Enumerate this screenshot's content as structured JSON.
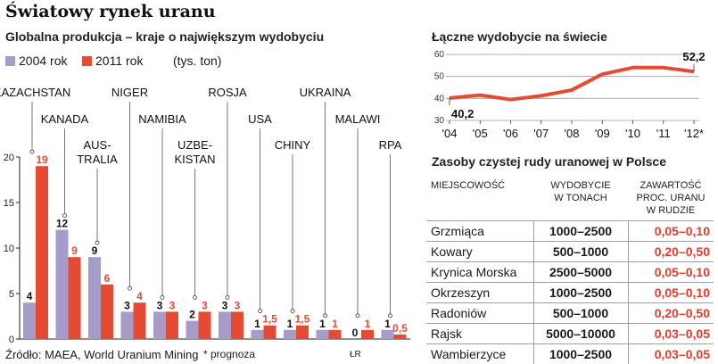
{
  "title": "Światowy rynek uranu",
  "subtitle": "Globalna produkcja – kraje o największym wydobyciu",
  "legend": {
    "series_2004": "2004 rok",
    "series_2011": "2011 rok",
    "unit": "(tys. ton)"
  },
  "source": "Źródło: MAEA, World Uranium Mining",
  "footnote": "* prognoza",
  "credit": "ŁR",
  "colors": {
    "series_2004": "#a79bc9",
    "series_2011": "#e54b32",
    "axis": "#222222"
  },
  "chart_data": [
    {
      "type": "bar",
      "title": "Globalna produkcja – kraje o największym wydobyciu",
      "categories": [
        "KAZACHSTAN",
        "KANADA",
        "AUS-\nTRALIA",
        "NIGER",
        "NAMIBIA",
        "UZBE-\nKISTAN",
        "ROSJA",
        "USA",
        "CHINY",
        "UKRAINA",
        "MALAWI",
        "RPA"
      ],
      "series": [
        {
          "name": "2004 rok",
          "values": [
            4,
            12,
            9,
            3,
            3,
            2,
            3,
            1,
            1,
            1,
            0,
            1
          ],
          "labels": [
            "4",
            "12",
            "9",
            "3",
            "3",
            "2",
            "3",
            "1",
            "1",
            "1",
            "0",
            "1"
          ]
        },
        {
          "name": "2011 rok",
          "values": [
            19,
            9,
            6,
            4,
            3,
            3,
            3,
            1.5,
            1.5,
            1,
            1,
            0.5
          ],
          "labels": [
            "19",
            "9",
            "6",
            "4",
            "3",
            "3",
            "3",
            "1,5",
            "1,5",
            "1",
            "1",
            "0,5"
          ]
        }
      ],
      "ylim": [
        0,
        20
      ],
      "yticks": [
        "0",
        "5",
        "10",
        "15",
        "20"
      ],
      "xlabel": "",
      "ylabel": "",
      "grid": false,
      "legend": "top-left"
    },
    {
      "type": "line",
      "title": "Łączne wydobycie na świecie",
      "x": [
        "'04",
        "'05",
        "'06",
        "'07",
        "'08",
        "'09",
        "'10",
        "'11",
        "'12*"
      ],
      "series": [
        {
          "name": "",
          "values": [
            40.2,
            41.5,
            39.5,
            41.2,
            43.8,
            51,
            54,
            54,
            52.2
          ]
        }
      ],
      "point_labels": [
        "40,2",
        "",
        "",
        "",
        "",
        "",
        "",
        "",
        "52,2"
      ],
      "ylim": [
        30,
        60
      ],
      "yticks": [
        "30",
        "40",
        "50",
        "60"
      ],
      "xlabel": "",
      "ylabel": "",
      "grid": true
    }
  ],
  "reserves_table": {
    "title": "Zasoby czystej rudy uranowej w Polsce",
    "headers": [
      "MIEJSCOWOŚĆ",
      "WYDOBYCIE\nW TONACH",
      "ZAWARTOŚĆ\nPROC. URANU\nW RUDZIE"
    ],
    "rows": [
      [
        "Grzmiąca",
        "1000–2500",
        "0,05–0,10"
      ],
      [
        "Kowary",
        "500–1000",
        "0,20–0,50"
      ],
      [
        "Krynica Morska",
        "2500–5000",
        "0,05–0,10"
      ],
      [
        "Okrzeszyn",
        "1000–2500",
        "0,05–0,10"
      ],
      [
        "Radoniów",
        "500–1000",
        "0,20–0,50"
      ],
      [
        "Rajsk",
        "5000–10000",
        "0,03–0,05"
      ],
      [
        "Wambierzyce",
        "1000–2500",
        "0,03–0,05"
      ]
    ]
  }
}
